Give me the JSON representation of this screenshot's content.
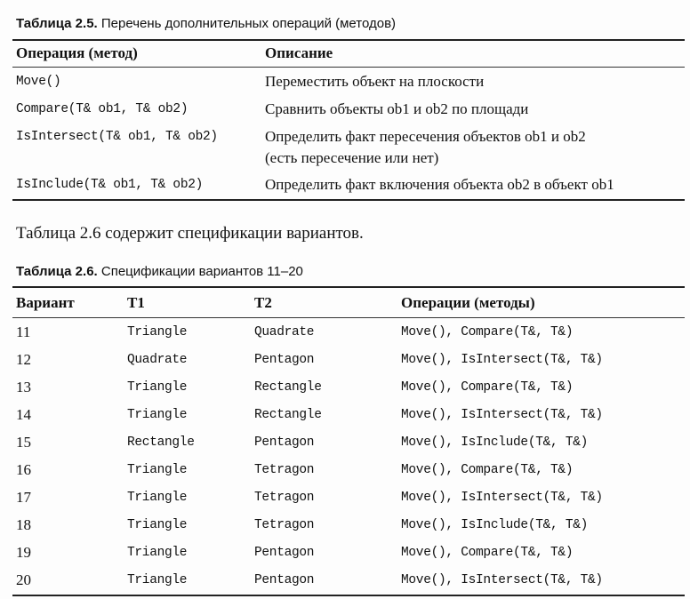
{
  "table25": {
    "caption_label": "Таблица 2.5.",
    "caption_text": " Перечень дополнительных операций (методов)",
    "headers": [
      "Операция (метод)",
      "Описание"
    ],
    "rows": [
      {
        "op": "Move()",
        "desc": [
          "Переместить объект на плоскости"
        ]
      },
      {
        "op": "Compare(T& ob1, T& ob2)",
        "desc": [
          "Сравнить объекты ob1 и ob2 по площади"
        ]
      },
      {
        "op": "IsIntersect(T& ob1, T& ob2)",
        "desc": [
          "Определить факт пересечения объектов ob1 и ob2",
          "(есть пересечение или нет)"
        ]
      },
      {
        "op": "IsInclude(T& ob1, T& ob2)",
        "desc": [
          "Определить факт включения объекта ob2 в объект ob1"
        ]
      }
    ]
  },
  "paragraph": "Таблица 2.6 содержит спецификации вариантов.",
  "table26": {
    "caption_label": "Таблица 2.6.",
    "caption_text": " Спецификации вариантов 11–20",
    "headers": [
      "Вариант",
      "T1",
      "T2",
      "Операции (методы)"
    ],
    "rows": [
      [
        "11",
        "Triangle",
        "Quadrate",
        "Move(), Compare(T&, T&)"
      ],
      [
        "12",
        "Quadrate",
        "Pentagon",
        "Move(), IsIntersect(T&, T&)"
      ],
      [
        "13",
        "Triangle",
        "Rectangle",
        "Move(), Compare(T&, T&)"
      ],
      [
        "14",
        "Triangle",
        "Rectangle",
        "Move(), IsIntersect(T&, T&)"
      ],
      [
        "15",
        "Rectangle",
        "Pentagon",
        "Move(), IsInclude(T&, T&)"
      ],
      [
        "16",
        "Triangle",
        "Tetragon",
        "Move(), Compare(T&, T&)"
      ],
      [
        "17",
        "Triangle",
        "Tetragon",
        "Move(), IsIntersect(T&, T&)"
      ],
      [
        "18",
        "Triangle",
        "Tetragon",
        "Move(), IsInclude(T&, T&)"
      ],
      [
        "19",
        "Triangle",
        "Pentagon",
        "Move(), Compare(T&, T&)"
      ],
      [
        "20",
        "Triangle",
        "Pentagon",
        "Move(), IsIntersect(T&, T&)"
      ]
    ]
  }
}
